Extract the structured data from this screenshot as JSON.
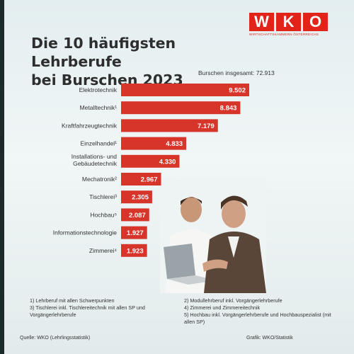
{
  "slide": {
    "title_line1": "Die 10 häufigsten Lehrberufe",
    "title_line2": "bei Burschen 2023",
    "logo_text": [
      "W",
      "K",
      "O"
    ],
    "logo_subtitle": "WIRTSCHAFTSKAMMERN ÖSTERREICHS",
    "total_label": "Burschen insgesamt: 72.913",
    "footnotes": [
      "1) Lehrberuf mit allen Schwerpunkten",
      "2) Modullehrberuf inkl. Vorgängerlehrberufe",
      "3) Tischlerei inkl. Tischlereitechnik mit allen SP und Vorgängerlehrberufe",
      "4) Zimmerei und Zimmereitechnik",
      "5) Hochbau inkl. Vorgängerlehrberufe und Hochbauspezialist (mit allen SP)"
    ],
    "source": "Quelle: WKO (Lehrlingsstatistik)",
    "grafik": "Grafik: WKO/Statistik"
  },
  "colors": {
    "bar": "#d7342a",
    "brand": "#e2231a",
    "title": "#2e2e2e",
    "background": "#e8f1f2"
  },
  "chart_data": {
    "type": "bar",
    "orientation": "horizontal",
    "categories": [
      "Elektrotechnik",
      "Metalltechnik¹",
      "Kraftfahrzeugtechnik",
      "Einzelhandel¹",
      "Installations- und Gebäudetechnik",
      "Mechatronik²",
      "Tischlerei³",
      "Hochbau⁵",
      "Informationstechnologie",
      "Zimmerei⁴"
    ],
    "values": [
      9502,
      8843,
      7179,
      4833,
      4330,
      2967,
      2305,
      2087,
      1927,
      1923
    ],
    "value_labels": [
      "9.502",
      "8.843",
      "7.179",
      "4.833",
      "4.330",
      "2.967",
      "2.305",
      "2.087",
      "1.927",
      "1.923"
    ],
    "title": "Die 10 häufigsten Lehrberufe bei Burschen 2023",
    "xlim": [
      0,
      10500
    ],
    "grid": false,
    "legend": "none"
  }
}
